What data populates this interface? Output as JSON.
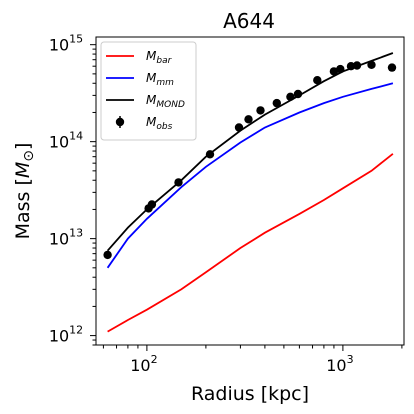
{
  "chart_data": {
    "type": "line",
    "title": "A644",
    "xlabel": "Radius [kpc]",
    "ylabel": "Mass [M_⊙]",
    "x_scale": "log",
    "y_scale": "log",
    "xlim": [
      55,
      2050
    ],
    "ylim": [
      800000000000.0,
      1200000000000000.0
    ],
    "grid": false,
    "legend_position": "top-left",
    "x_ticks": [
      {
        "value": 100,
        "base": "10",
        "exp": "2"
      },
      {
        "value": 1000,
        "base": "10",
        "exp": "3"
      }
    ],
    "y_ticks": [
      {
        "value": 1000000000000.0,
        "base": "10",
        "exp": "12"
      },
      {
        "value": 10000000000000.0,
        "base": "10",
        "exp": "13"
      },
      {
        "value": 100000000000000.0,
        "base": "10",
        "exp": "14"
      },
      {
        "value": 1000000000000000.0,
        "base": "10",
        "exp": "15"
      }
    ],
    "series": [
      {
        "name": "M_bar",
        "legend_main": "M",
        "legend_sub": "bar",
        "kind": "line",
        "color": "#ff0000",
        "x": [
          63,
          80,
          100,
          150,
          200,
          300,
          400,
          600,
          800,
          1000,
          1400,
          1800
        ],
        "y": [
          1100000000000.0,
          1450000000000.0,
          1850000000000.0,
          3000000000000.0,
          4500000000000.0,
          8000000000000.0,
          11500000000000.0,
          18000000000000.0,
          25000000000000.0,
          33000000000000.0,
          50000000000000.0,
          75000000000000.0
        ]
      },
      {
        "name": "M_mm",
        "legend_main": "M",
        "legend_sub": "mm",
        "kind": "line",
        "color": "#0000ff",
        "x": [
          63,
          80,
          100,
          150,
          200,
          300,
          400,
          600,
          800,
          1000,
          1400,
          1800
        ],
        "y": [
          5000000000000.0,
          10000000000000.0,
          16000000000000.0,
          34000000000000.0,
          55000000000000.0,
          98000000000000.0,
          140000000000000.0,
          200000000000000.0,
          250000000000000.0,
          290000000000000.0,
          350000000000000.0,
          400000000000000.0
        ]
      },
      {
        "name": "M_MOND",
        "legend_main": "M",
        "legend_sub": "MOND",
        "kind": "line",
        "color": "#000000",
        "x": [
          63,
          80,
          100,
          150,
          200,
          300,
          400,
          600,
          800,
          1000,
          1400,
          1800
        ],
        "y": [
          7500000000000.0,
          13000000000000.0,
          20000000000000.0,
          40000000000000.0,
          70000000000000.0,
          130000000000000.0,
          190000000000000.0,
          300000000000000.0,
          420000000000000.0,
          530000000000000.0,
          680000000000000.0,
          820000000000000.0
        ]
      },
      {
        "name": "M_obs",
        "legend_main": "M",
        "legend_sub": "obs",
        "kind": "errorbar",
        "color": "#000000",
        "x": [
          63,
          102,
          106,
          145,
          210,
          295,
          330,
          380,
          460,
          540,
          590,
          740,
          900,
          970,
          1100,
          1180,
          1400,
          1780
        ],
        "y": [
          6800000000000.0,
          20500000000000.0,
          22500000000000.0,
          38000000000000.0,
          74000000000000.0,
          140000000000000.0,
          170000000000000.0,
          210000000000000.0,
          250000000000000.0,
          290000000000000.0,
          310000000000000.0,
          430000000000000.0,
          530000000000000.0,
          560000000000000.0,
          600000000000000.0,
          610000000000000.0,
          620000000000000.0,
          580000000000000.0
        ]
      }
    ]
  }
}
